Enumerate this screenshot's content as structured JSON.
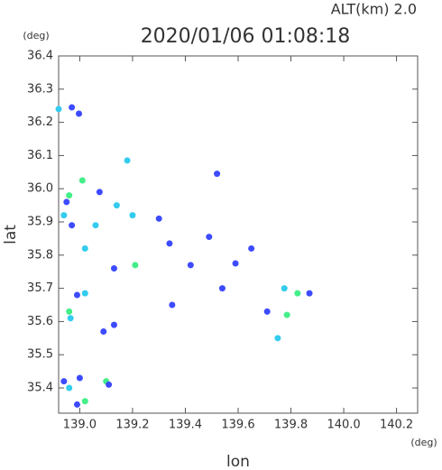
{
  "chart_data": {
    "type": "scatter",
    "title": "2020/01/06 01:08:18",
    "subtitle": "ALT(km) 2.0",
    "x_label": "lon",
    "y_label": "lat",
    "x_unit": "(deg)",
    "y_unit": "(deg)",
    "xlim": [
      138.92,
      140.28
    ],
    "ylim": [
      35.324,
      36.4
    ],
    "xticks": [
      {
        "value": 139.0,
        "label": "139.0"
      },
      139.2,
      139.4,
      139.6,
      139.8,
      {
        "value": 140.0,
        "label": "140.0"
      },
      140.2
    ],
    "yticks": [
      36.4,
      36.3,
      36.2,
      36.1,
      {
        "value": 36.0,
        "label": "36.0"
      },
      35.9,
      35.8,
      35.7,
      35.6,
      35.5,
      35.4
    ],
    "x": [
      138.92,
      138.97,
      138.997,
      139.01,
      138.96,
      138.95,
      138.94,
      138.97,
      139.02,
      139.06,
      139.075,
      139.14,
      139.2,
      139.18,
      139.21,
      139.13,
      139.3,
      139.34,
      139.42,
      139.49,
      139.52,
      139.65,
      139.59,
      139.54,
      139.35,
      138.99,
      139.02,
      138.96,
      138.965,
      139.09,
      139.13,
      139.775,
      139.825,
      139.87,
      139.785,
      139.75,
      139.71,
      138.94,
      138.96,
      139.0,
      139.02,
      138.99,
      139.1,
      139.11
    ],
    "y": [
      36.24,
      36.245,
      36.226,
      36.025,
      35.98,
      35.96,
      35.92,
      35.89,
      35.82,
      35.89,
      35.99,
      35.95,
      35.92,
      36.085,
      35.77,
      35.76,
      35.91,
      35.835,
      35.77,
      35.855,
      36.045,
      35.82,
      35.775,
      35.7,
      35.65,
      35.68,
      35.685,
      35.63,
      35.61,
      35.57,
      35.59,
      35.7,
      35.685,
      35.685,
      35.62,
      35.55,
      35.63,
      35.42,
      35.4,
      35.43,
      35.36,
      35.35,
      35.42,
      35.41
    ],
    "colors": [
      "#33ccee",
      "#3d4bff",
      "#3d4bff",
      "#44ee88",
      "#44ee88",
      "#3d4bff",
      "#33ccee",
      "#3d4bff",
      "#33ccee",
      "#33ccee",
      "#3d4bff",
      "#33ccee",
      "#33ccee",
      "#33ccee",
      "#44ee88",
      "#3d4bff",
      "#3d4bff",
      "#3d4bff",
      "#3d4bff",
      "#3d4bff",
      "#3d4bff",
      "#3d4bff",
      "#3d4bff",
      "#3d4bff",
      "#3d4bff",
      "#3d4bff",
      "#33ccee",
      "#44ee88",
      "#33ccee",
      "#3d4bff",
      "#3d4bff",
      "#33ccee",
      "#44ee88",
      "#3d4bff",
      "#44ee88",
      "#33ccee",
      "#3d4bff",
      "#3d4bff",
      "#33ccee",
      "#3d4bff",
      "#44ee88",
      "#3d4bff",
      "#44ee88",
      "#3d4bff"
    ]
  }
}
